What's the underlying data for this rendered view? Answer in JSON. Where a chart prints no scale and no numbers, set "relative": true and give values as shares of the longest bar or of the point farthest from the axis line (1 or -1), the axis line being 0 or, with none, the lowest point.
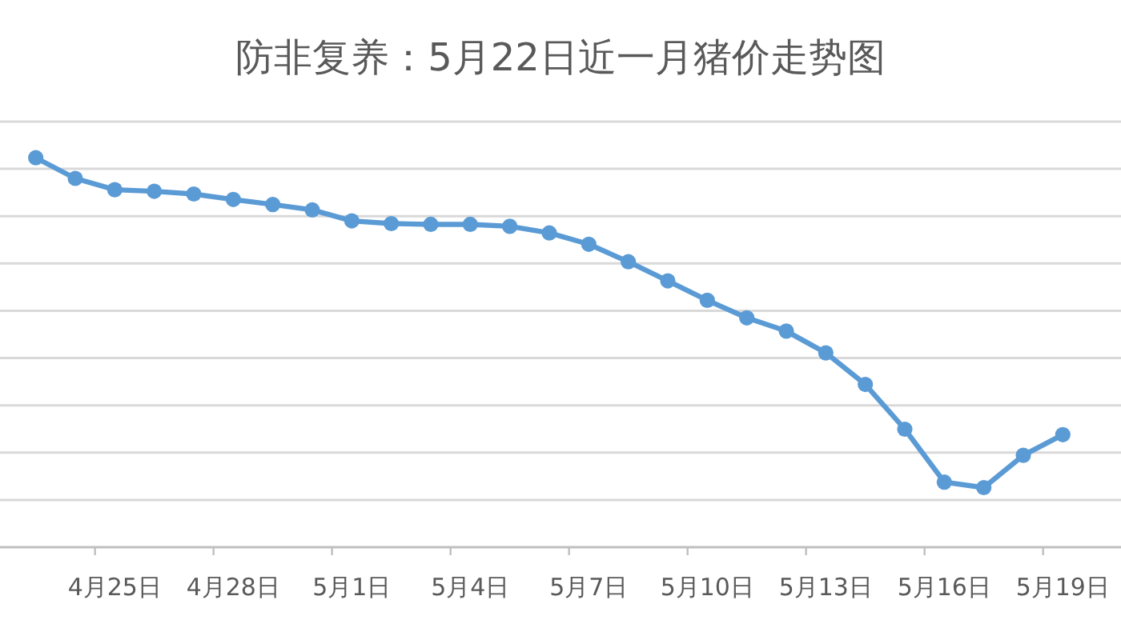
{
  "chart_data": {
    "type": "line",
    "title": "防非复养：5月22日近一月猪价走势图",
    "categories": [
      null,
      null,
      "4月25日",
      null,
      null,
      "4月28日",
      null,
      null,
      "5月1日",
      null,
      null,
      "5月4日",
      null,
      null,
      "5月7日",
      null,
      null,
      "5月10日",
      null,
      null,
      "5月13日",
      null,
      null,
      "5月16日",
      null,
      null,
      "5月19日"
    ],
    "relative": true,
    "series": [
      {
        "color": "#5b9bd5",
        "values": [
          1.0,
          0.947,
          0.918,
          0.914,
          0.907,
          0.893,
          0.88,
          0.866,
          0.838,
          0.831,
          0.829,
          0.829,
          0.824,
          0.807,
          0.778,
          0.733,
          0.684,
          0.634,
          0.589,
          0.555,
          0.499,
          0.418,
          0.303,
          0.167,
          0.153,
          0.236,
          0.289
        ]
      }
    ],
    "grid": "y",
    "marker": "circle",
    "line_style": "solid",
    "tick_labels": "x"
  }
}
